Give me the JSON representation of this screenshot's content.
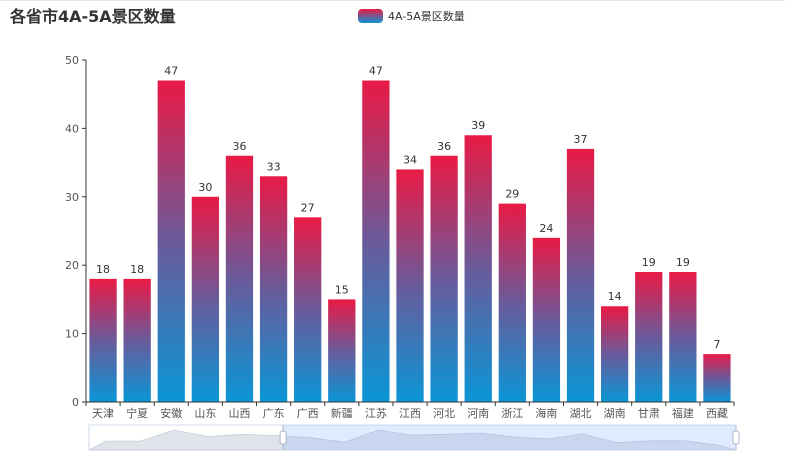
{
  "header": {
    "title": "各省市4A-5A景区数量"
  },
  "legend": {
    "label": "4A-5A景区数量"
  },
  "colors": {
    "bar_top": "#e91a45",
    "bar_mid": "#6a5a9a",
    "bar_bottom": "#0a96d6"
  },
  "chart_data": {
    "type": "bar",
    "title": "各省市4A-5A景区数量",
    "xlabel": "",
    "ylabel": "",
    "ylim": [
      0,
      50
    ],
    "yticks": [
      0,
      10,
      20,
      30,
      40,
      50
    ],
    "grid": false,
    "legend_position": "top-center",
    "categories": [
      "天津",
      "宁夏",
      "安徽",
      "山东",
      "山西",
      "广东",
      "广西",
      "新疆",
      "江苏",
      "江西",
      "河北",
      "河南",
      "浙江",
      "海南",
      "湖北",
      "湖南",
      "甘肃",
      "福建",
      "西藏"
    ],
    "series": [
      {
        "name": "4A-5A景区数量",
        "values": [
          18,
          18,
          47,
          30,
          36,
          33,
          27,
          15,
          47,
          34,
          36,
          39,
          29,
          24,
          37,
          14,
          19,
          19,
          7
        ]
      }
    ],
    "datazoom": {
      "type": "slider",
      "start_fraction": 0.3,
      "end_fraction": 1.0
    }
  }
}
